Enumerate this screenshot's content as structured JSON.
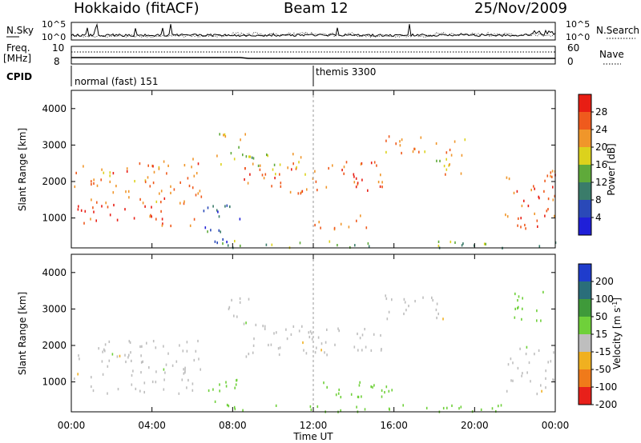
{
  "header": {
    "radar": "Hokkaido (fitACF)",
    "beam": "Beam 12",
    "date": "25/Nov/2009"
  },
  "sky_panel": {
    "left_label": "N.Sky",
    "right_label": "N.Search",
    "left_ticks": [
      "10^5",
      "10^0"
    ],
    "right_ticks": [
      "10^5",
      "10^0"
    ]
  },
  "freq_panel": {
    "left_label": "Freq.",
    "left_unit": "[MHz]",
    "left_ticks": [
      "10",
      "8"
    ],
    "right_label": "Nave",
    "right_ticks": [
      "60",
      "0"
    ]
  },
  "cpid": {
    "label": "CPID",
    "programs": [
      {
        "name": "normal (fast) 151",
        "start_hour": 0
      },
      {
        "name": "themis 3300",
        "start_hour": 12
      }
    ]
  },
  "time_axis": {
    "label": "Time UT",
    "ticks": [
      "00:00",
      "04:00",
      "08:00",
      "12:00",
      "16:00",
      "20:00",
      "00:00"
    ],
    "range_hours": [
      0,
      24
    ]
  },
  "range_axis": {
    "label": "Slant Range [km]",
    "ticks": [
      "1000",
      "2000",
      "3000",
      "4000"
    ],
    "range_km": [
      180,
      4500
    ]
  },
  "chart_data": [
    {
      "type": "heatmap",
      "title": "Power",
      "ylabel": "Slant Range [km]",
      "xlabel": "",
      "colorbar_label": "Power [dB]",
      "colorbar_ticks": [
        "4",
        "8",
        "12",
        "16",
        "20",
        "24",
        "28"
      ],
      "colors": [
        "#1f1fd8",
        "#2a49b8",
        "#3a7c6a",
        "#5faa3a",
        "#dcd21c",
        "#f0962a",
        "#ef5a1d",
        "#e81e14"
      ],
      "scatter_regions": [
        {
          "t0": 0.0,
          "t1": 6.2,
          "r0": 800,
          "r1": 1400,
          "value": 28
        },
        {
          "t0": 0.0,
          "t1": 6.0,
          "r0": 1400,
          "r1": 2600,
          "value": 24
        },
        {
          "t0": 5.8,
          "t1": 6.6,
          "r0": 1400,
          "r1": 2700,
          "value": 26
        },
        {
          "t0": 6.4,
          "t1": 8.4,
          "r0": 300,
          "r1": 1400,
          "value": 8
        },
        {
          "t0": 7.0,
          "t1": 9.0,
          "r0": 2500,
          "r1": 3400,
          "value": 16
        },
        {
          "t0": 8.5,
          "t1": 15.5,
          "r0": 1700,
          "r1": 2600,
          "value": 26
        },
        {
          "t0": 9.0,
          "t1": 12.0,
          "r0": 2200,
          "r1": 2800,
          "value": 18
        },
        {
          "t0": 12.0,
          "t1": 15.0,
          "r0": 700,
          "r1": 1100,
          "value": 22
        },
        {
          "t0": 15.5,
          "t1": 18.0,
          "r0": 2700,
          "r1": 3300,
          "value": 24
        },
        {
          "t0": 18.0,
          "t1": 19.5,
          "r0": 2000,
          "r1": 3200,
          "value": 20
        },
        {
          "t0": 21.5,
          "t1": 24.0,
          "r0": 700,
          "r1": 2400,
          "value": 26
        },
        {
          "t0": 7.0,
          "t1": 24.0,
          "r0": 200,
          "r1": 400,
          "value": 14
        }
      ]
    },
    {
      "type": "heatmap",
      "title": "Velocity",
      "ylabel": "Slant Range [km]",
      "xlabel": "Time UT",
      "colorbar_label": "Velocity [m s^-1]",
      "colorbar_ticks": [
        "200",
        "100",
        "50",
        "15",
        "-15",
        "-50",
        "-100",
        "-200"
      ],
      "colors": [
        "#1f3ccc",
        "#2a6e7a",
        "#3f9a3a",
        "#6fd03a",
        "#bebebe",
        "#f0b020",
        "#f07a1a",
        "#e8201a"
      ],
      "scatter_regions": [
        {
          "t0": 0.0,
          "t1": 6.5,
          "r0": 700,
          "r1": 2200,
          "value": 0
        },
        {
          "t0": 6.5,
          "t1": 8.2,
          "r0": 400,
          "r1": 1200,
          "value": 30
        },
        {
          "t0": 7.2,
          "t1": 8.8,
          "r0": 2500,
          "r1": 3400,
          "value": 0
        },
        {
          "t0": 8.5,
          "t1": 15.5,
          "r0": 1700,
          "r1": 2600,
          "value": 0
        },
        {
          "t0": 12.0,
          "t1": 16.0,
          "r0": 600,
          "r1": 1100,
          "value": 20
        },
        {
          "t0": 15.5,
          "t1": 18.5,
          "r0": 2700,
          "r1": 3400,
          "value": 0
        },
        {
          "t0": 21.5,
          "t1": 23.5,
          "r0": 2500,
          "r1": 3500,
          "value": 30
        },
        {
          "t0": 21.5,
          "t1": 24.0,
          "r0": 700,
          "r1": 2000,
          "value": 0
        },
        {
          "t0": 7.0,
          "t1": 24.0,
          "r0": 200,
          "r1": 400,
          "value": 40
        }
      ]
    }
  ]
}
